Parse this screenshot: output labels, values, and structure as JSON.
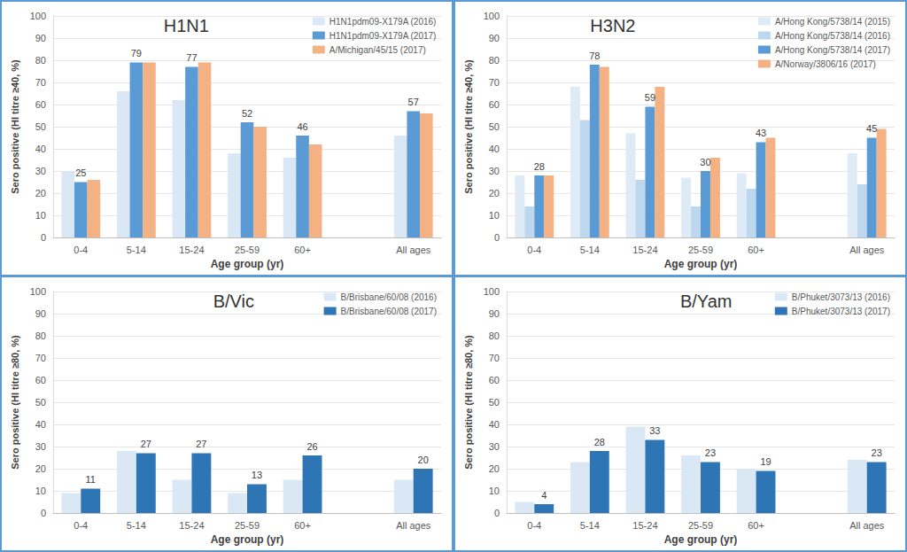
{
  "chart_data": [
    {
      "type": "bar",
      "title": "H1N1",
      "categories": [
        "0-4",
        "5-14",
        "15-24",
        "25-59",
        "60+",
        null,
        "All ages"
      ],
      "series": [
        {
          "name": "H1N1pdm09-X179A (2016)",
          "color": "#dae8f5",
          "values": [
            30,
            66,
            62,
            38,
            36,
            null,
            46
          ]
        },
        {
          "name": "H1N1pdm09-X179A (2017)",
          "color": "#5b9bd5",
          "values": [
            25,
            79,
            77,
            52,
            46,
            null,
            57
          ],
          "data_labels": true
        },
        {
          "name": "A/Michigan/45/15 (2017)",
          "color": "#f4b183",
          "values": [
            26,
            79,
            79,
            50,
            42,
            null,
            56
          ]
        }
      ],
      "x_label": "Age group (yr)",
      "y_label": "Sero positive (HI titre ≥40, %)",
      "ylim": [
        0,
        100
      ],
      "yticks": [
        0,
        10,
        20,
        30,
        40,
        50,
        60,
        70,
        80,
        90,
        100
      ],
      "grid": true,
      "legend": "top-right"
    },
    {
      "type": "bar",
      "title": "H3N2",
      "categories": [
        "0-4",
        "5-14",
        "15-24",
        "25-59",
        "60+",
        null,
        "All ages"
      ],
      "series": [
        {
          "name": "A/Hong Kong/5738/14 (2015)",
          "color": "#deebf7",
          "values": [
            28,
            68,
            47,
            27,
            29,
            null,
            38
          ]
        },
        {
          "name": "A/Hong Kong/5738/14 (2016)",
          "color": "#bdd7ee",
          "values": [
            14,
            53,
            26,
            14,
            22,
            null,
            24
          ]
        },
        {
          "name": "A/Hong Kong/5738/14 (2017)",
          "color": "#5b9bd5",
          "values": [
            28,
            78,
            59,
            30,
            43,
            null,
            45
          ],
          "data_labels": true
        },
        {
          "name": "A/Norway/3806/16 (2017)",
          "color": "#f4b183",
          "values": [
            28,
            77,
            68,
            36,
            45,
            null,
            49
          ]
        }
      ],
      "x_label": "Age group (yr)",
      "y_label": "Sero positive (HI titre ≥40, %)",
      "ylim": [
        0,
        100
      ],
      "yticks": [
        0,
        10,
        20,
        30,
        40,
        50,
        60,
        70,
        80,
        90,
        100
      ],
      "grid": true,
      "legend": "top-right"
    },
    {
      "type": "bar",
      "title": "B/Vic",
      "categories": [
        "0-4",
        "5-14",
        "15-24",
        "25-59",
        "60+",
        null,
        "All ages"
      ],
      "series": [
        {
          "name": "B/Brisbane/60/08 (2016)",
          "color": "#dae8f5",
          "values": [
            9,
            28,
            15,
            9,
            15,
            null,
            15
          ]
        },
        {
          "name": "B/Brisbane/60/08 (2017)",
          "color": "#2e75b6",
          "values": [
            11,
            27,
            27,
            13,
            26,
            null,
            20
          ],
          "data_labels": true
        }
      ],
      "x_label": "Age group (yr)",
      "y_label": "Sero positive (HI titre ≥80, %)",
      "ylim": [
        0,
        100
      ],
      "yticks": [
        0,
        10,
        20,
        30,
        40,
        50,
        60,
        70,
        80,
        90,
        100
      ],
      "grid": true,
      "legend": "top-right"
    },
    {
      "type": "bar",
      "title": "B/Yam",
      "categories": [
        "0-4",
        "5-14",
        "15-24",
        "25-59",
        "60+",
        null,
        "All ages"
      ],
      "series": [
        {
          "name": "B/Phuket/3073/13 (2016)",
          "color": "#dae8f5",
          "values": [
            5,
            23,
            39,
            26,
            20,
            null,
            24
          ]
        },
        {
          "name": "B/Phuket/3073/13 (2017)",
          "color": "#2e75b6",
          "values": [
            4,
            28,
            33,
            23,
            19,
            null,
            23
          ],
          "data_labels": true
        }
      ],
      "x_label": "Age group (yr)",
      "y_label": "Sero positive (HI titre ≥80, %)",
      "ylim": [
        0,
        100
      ],
      "yticks": [
        0,
        10,
        20,
        30,
        40,
        50,
        60,
        70,
        80,
        90,
        100
      ],
      "grid": true,
      "legend": "top-right"
    }
  ]
}
